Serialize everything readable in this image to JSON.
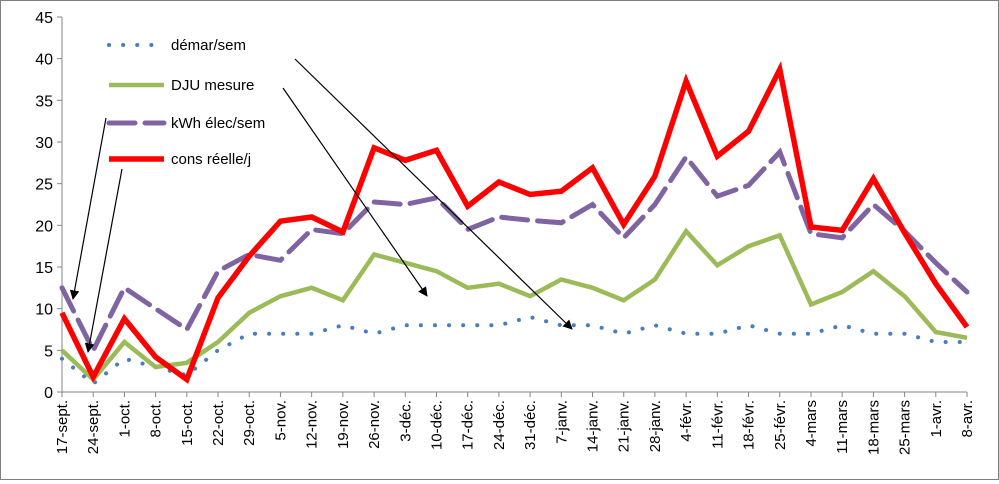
{
  "chart_data": {
    "type": "line",
    "title": "",
    "xlabel": "",
    "ylabel": "",
    "ylim": [
      0,
      45
    ],
    "yticks": [
      0,
      5,
      10,
      15,
      20,
      25,
      30,
      35,
      40,
      45
    ],
    "grid": false,
    "legend_position": "top-left",
    "categories": [
      "17-sept.",
      "24-sept.",
      "1-oct.",
      "8-oct.",
      "15-oct.",
      "22-oct.",
      "29-oct.",
      "5-nov.",
      "12-nov.",
      "19-nov.",
      "26-nov.",
      "3-déc.",
      "10-déc.",
      "17-déc.",
      "24-déc.",
      "31-déc.",
      "7-janv.",
      "14-janv.",
      "21-janv.",
      "28-janv.",
      "4-févr.",
      "11-févr.",
      "18-févr.",
      "25-févr.",
      "4-mars",
      "11-mars",
      "18-mars",
      "25-mars",
      "1-avr.",
      "8-avr."
    ],
    "series": [
      {
        "name": "démar/sem",
        "color": "#4a7ebb",
        "style": "dotted",
        "values": [
          4,
          1,
          4,
          3,
          2,
          5,
          7,
          7,
          7,
          8,
          7,
          8,
          8,
          8,
          8,
          9,
          8,
          8,
          7,
          8,
          7,
          7,
          8,
          7,
          7,
          8,
          7,
          7,
          6,
          6
        ]
      },
      {
        "name": "DJU mesure",
        "color": "#9bbb59",
        "style": "solid",
        "values": [
          5,
          1.5,
          6,
          3,
          3.5,
          6,
          9.5,
          11.5,
          12.5,
          11,
          16.5,
          15.5,
          14.5,
          12.5,
          13,
          11.5,
          13.5,
          12.5,
          11,
          13.5,
          19.3,
          15.2,
          17.5,
          18.8,
          10.5,
          12,
          14.5,
          11.5,
          7.2,
          6.5
        ]
      },
      {
        "name": "kWh élec/sem",
        "color": "#8064a2",
        "style": "dashed",
        "values": [
          12.5,
          5,
          12.5,
          10,
          7.5,
          14.5,
          16.5,
          15.8,
          19.5,
          19,
          22.8,
          22.5,
          23.3,
          19.5,
          21,
          20.6,
          20.3,
          22.5,
          18.5,
          22.5,
          28.2,
          23.5,
          24.8,
          28.8,
          19,
          18.5,
          22.5,
          19.3,
          15.5,
          12
        ]
      },
      {
        "name": "cons réelle/j",
        "color": "#ff0000",
        "style": "solid",
        "values": [
          9.5,
          1.8,
          8.8,
          4.2,
          1.5,
          11.3,
          16.3,
          20.5,
          21,
          19.2,
          29.3,
          27.8,
          29,
          22.3,
          25.2,
          23.7,
          24.1,
          26.9,
          20.1,
          25.9,
          37.3,
          28.3,
          31.3,
          38.7,
          19.8,
          19.4,
          25.6,
          19.1,
          13,
          7.8
        ]
      }
    ]
  }
}
